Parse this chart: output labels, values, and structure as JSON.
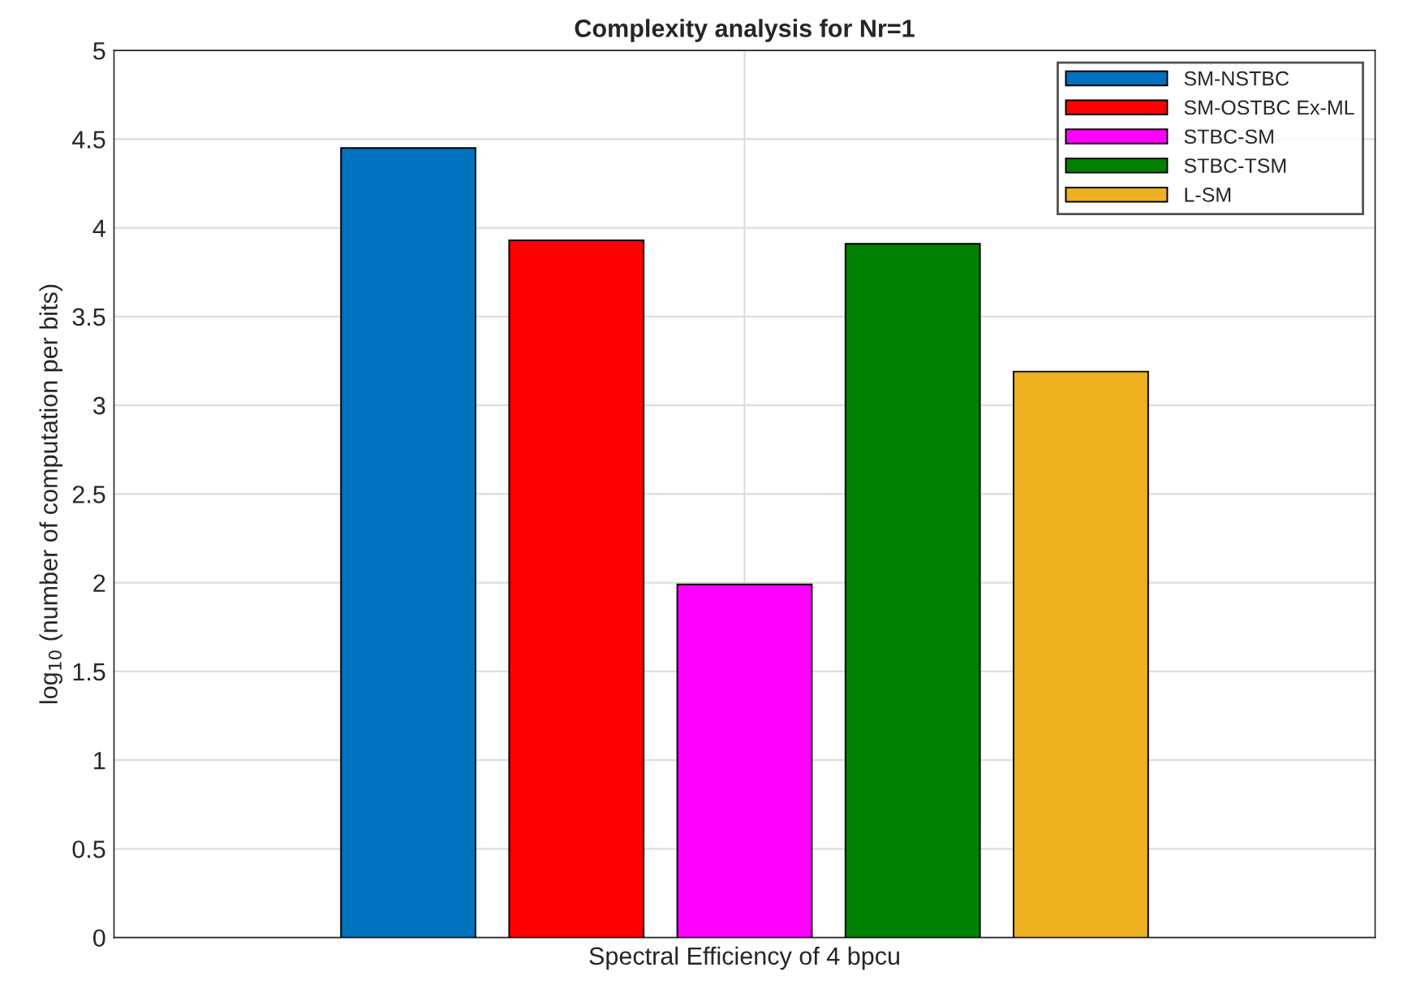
{
  "chart_data": {
    "type": "bar",
    "title": "Complexity analysis for Nr=1",
    "xlabel": "Spectral Efficiency of 4 bpcu",
    "ylabel": "log$_{10}$ (number of computation per bits)",
    "categories": [
      null
    ],
    "series": [
      {
        "name": "SM-NSTBC",
        "color": "#0072bd",
        "values": [
          4.45
        ]
      },
      {
        "name": "SM-OSTBC Ex-ML",
        "color": "#ff0000",
        "values": [
          3.93
        ]
      },
      {
        "name": "STBC-SM",
        "color": "#ff00ff",
        "values": [
          1.99
        ]
      },
      {
        "name": "STBC-TSM",
        "color": "#008000",
        "values": [
          3.91
        ]
      },
      {
        "name": "L-SM",
        "color": "#edb120",
        "values": [
          3.19
        ]
      }
    ],
    "ylim": [
      0,
      5
    ],
    "yticks": [
      0,
      0.5,
      1,
      1.5,
      2,
      2.5,
      3,
      3.5,
      4,
      4.5,
      5
    ],
    "grid": true,
    "legend": "top right",
    "tick_labels": "y"
  }
}
